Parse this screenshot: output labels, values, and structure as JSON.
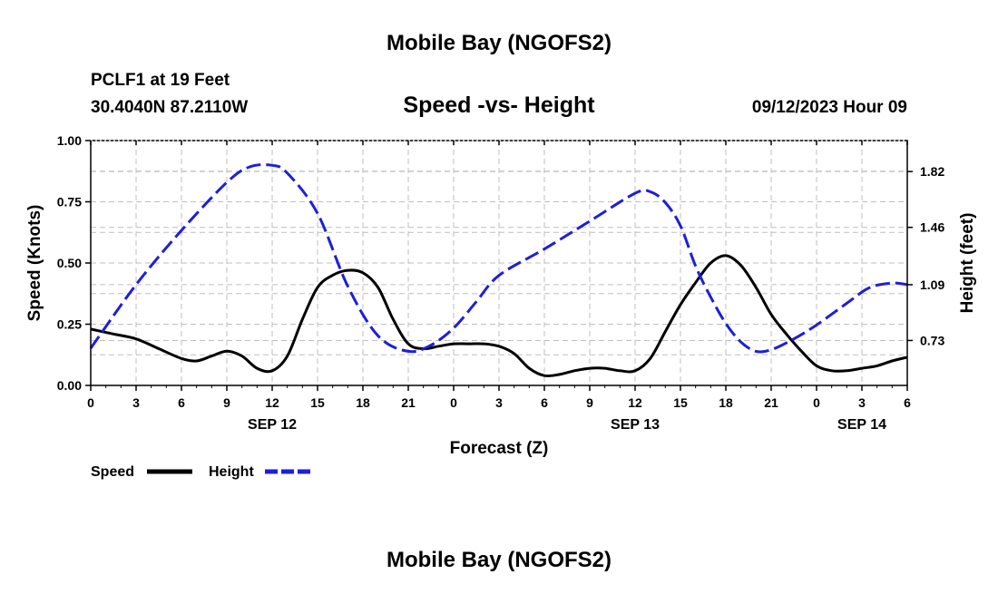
{
  "header": {
    "title_top": "Mobile Bay (NGOFS2)",
    "station_line1": "PCLF1 at 19 Feet",
    "station_line2": "30.4040N  87.2110W",
    "chart_subtitle": "Speed -vs- Height",
    "datetime": "09/12/2023 Hour 09",
    "title_bottom": "Mobile Bay (NGOFS2)"
  },
  "colors": {
    "speed": "#000000",
    "height": "#1f1fd6",
    "grid": "#bfbfbf",
    "axis": "#000000"
  },
  "chart_data": {
    "type": "line",
    "title": "Speed -vs- Height",
    "xlabel": "Forecast (Z)",
    "ylabel_left": "Speed (Knots)",
    "ylabel_right": "Height (feet)",
    "x_hours_range": [
      0,
      54
    ],
    "x_tick_hours": [
      0,
      3,
      6,
      9,
      12,
      15,
      18,
      21,
      24,
      27,
      30,
      33,
      36,
      39,
      42,
      45,
      48,
      51,
      54
    ],
    "x_tick_labels": [
      "0",
      "3",
      "6",
      "9",
      "12",
      "15",
      "18",
      "21",
      "0",
      "3",
      "6",
      "9",
      "12",
      "15",
      "18",
      "21",
      "0",
      "3",
      "6"
    ],
    "date_labels": [
      {
        "hour": 12,
        "label": "SEP 12"
      },
      {
        "hour": 36,
        "label": "SEP 13"
      },
      {
        "hour": 51,
        "label": "SEP 14"
      }
    ],
    "ylim_left": [
      0,
      1
    ],
    "yticks_left": [
      0,
      0.25,
      0.5,
      0.75,
      1
    ],
    "ytick_labels_left": [
      "0.00",
      "0.25",
      "0.50",
      "0.75",
      "1.00"
    ],
    "ylim_right": [
      0.44,
      2.02
    ],
    "yticks_right": [
      0.73,
      1.09,
      1.46,
      1.82
    ],
    "ytick_labels_right": [
      "0.73",
      "1.09",
      "1.46",
      "1.82"
    ],
    "grid": true,
    "legend_position": "bottom-left",
    "series": [
      {
        "name": "Speed",
        "axis": "left",
        "style": "solid",
        "points": [
          [
            0,
            0.23
          ],
          [
            1.5,
            0.21
          ],
          [
            3,
            0.19
          ],
          [
            4.5,
            0.15
          ],
          [
            6,
            0.11
          ],
          [
            7,
            0.1
          ],
          [
            8,
            0.12
          ],
          [
            9,
            0.14
          ],
          [
            10,
            0.12
          ],
          [
            11,
            0.07
          ],
          [
            12,
            0.06
          ],
          [
            13,
            0.12
          ],
          [
            14,
            0.27
          ],
          [
            15,
            0.4
          ],
          [
            16,
            0.45
          ],
          [
            17,
            0.47
          ],
          [
            18,
            0.46
          ],
          [
            19,
            0.4
          ],
          [
            20,
            0.27
          ],
          [
            21,
            0.17
          ],
          [
            22,
            0.15
          ],
          [
            23,
            0.16
          ],
          [
            24,
            0.17
          ],
          [
            25,
            0.17
          ],
          [
            26,
            0.17
          ],
          [
            27,
            0.16
          ],
          [
            28,
            0.13
          ],
          [
            29,
            0.07
          ],
          [
            30,
            0.04
          ],
          [
            31,
            0.045
          ],
          [
            32,
            0.06
          ],
          [
            33,
            0.07
          ],
          [
            34,
            0.07
          ],
          [
            35,
            0.06
          ],
          [
            36,
            0.06
          ],
          [
            37,
            0.11
          ],
          [
            38,
            0.22
          ],
          [
            39,
            0.33
          ],
          [
            40,
            0.42
          ],
          [
            41,
            0.5
          ],
          [
            42,
            0.53
          ],
          [
            43,
            0.49
          ],
          [
            44,
            0.4
          ],
          [
            45,
            0.29
          ],
          [
            46,
            0.21
          ],
          [
            47,
            0.14
          ],
          [
            48,
            0.08
          ],
          [
            49,
            0.06
          ],
          [
            50,
            0.06
          ],
          [
            51,
            0.07
          ],
          [
            52,
            0.08
          ],
          [
            53,
            0.1
          ],
          [
            54,
            0.115
          ]
        ]
      },
      {
        "name": "Height",
        "axis": "right",
        "style": "dashed",
        "points": [
          [
            0,
            0.68
          ],
          [
            3,
            1.09
          ],
          [
            6,
            1.44
          ],
          [
            9,
            1.75
          ],
          [
            10.5,
            1.85
          ],
          [
            12,
            1.86
          ],
          [
            13,
            1.81
          ],
          [
            15,
            1.55
          ],
          [
            17,
            1.08
          ],
          [
            19,
            0.76
          ],
          [
            21,
            0.66
          ],
          [
            22.5,
            0.7
          ],
          [
            24,
            0.81
          ],
          [
            25.5,
            0.98
          ],
          [
            27,
            1.15
          ],
          [
            30,
            1.32
          ],
          [
            33,
            1.5
          ],
          [
            36,
            1.68
          ],
          [
            37,
            1.69
          ],
          [
            38,
            1.62
          ],
          [
            39,
            1.47
          ],
          [
            40,
            1.21
          ],
          [
            41,
            1.01
          ],
          [
            42,
            0.84
          ],
          [
            43,
            0.72
          ],
          [
            44,
            0.66
          ],
          [
            45,
            0.67
          ],
          [
            46.5,
            0.74
          ],
          [
            48,
            0.83
          ],
          [
            50,
            0.97
          ],
          [
            51.5,
            1.07
          ],
          [
            53,
            1.1
          ],
          [
            54,
            1.09
          ]
        ]
      }
    ]
  },
  "legend": [
    {
      "label": "Speed",
      "color": "#000000",
      "style": "solid"
    },
    {
      "label": "Height",
      "color": "#1f1fd6",
      "style": "dashed"
    }
  ]
}
